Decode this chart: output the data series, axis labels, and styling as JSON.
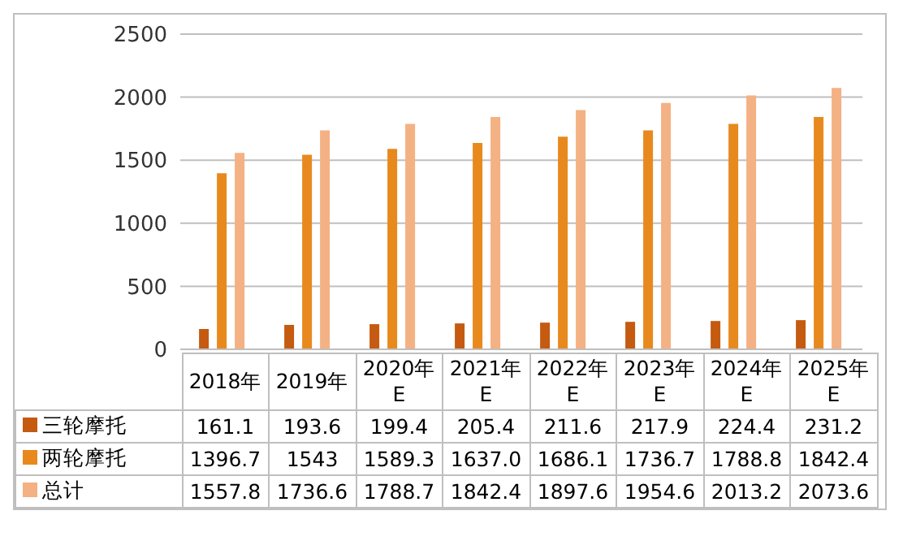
{
  "chart_data": {
    "type": "bar",
    "categories": [
      "2018年",
      "2019年",
      "2020年E",
      "2021年E",
      "2022年E",
      "2023年E",
      "2024年E",
      "2025年E"
    ],
    "series": [
      {
        "name": "三轮摩托",
        "color": "#c55a11",
        "values": [
          161.1,
          193.6,
          199.4,
          205.4,
          211.6,
          217.9,
          224.4,
          231.2
        ],
        "value_labels": [
          "161.1",
          "193.6",
          "199.4",
          "205.4",
          "211.6",
          "217.9",
          "224.4",
          "231.2"
        ]
      },
      {
        "name": "两轮摩托",
        "color": "#e8891e",
        "values": [
          1396.7,
          1543,
          1589.3,
          1637.0,
          1686.1,
          1736.7,
          1788.8,
          1842.4
        ],
        "value_labels": [
          "1396.7",
          "1543",
          "1589.3",
          "1637.0",
          "1686.1",
          "1736.7",
          "1788.8",
          "1842.4"
        ]
      },
      {
        "name": "总计",
        "color": "#f4b183",
        "values": [
          1557.8,
          1736.6,
          1788.7,
          1842.4,
          1897.6,
          1954.6,
          2013.2,
          2073.6
        ],
        "value_labels": [
          "1557.8",
          "1736.6",
          "1788.7",
          "1842.4",
          "1897.6",
          "1954.6",
          "2013.2",
          "2073.6"
        ]
      }
    ],
    "ylim": [
      0,
      2500
    ],
    "yticks": [
      0,
      500,
      1000,
      1500,
      2000,
      2500
    ],
    "grid": "y",
    "legend": "bottom"
  }
}
